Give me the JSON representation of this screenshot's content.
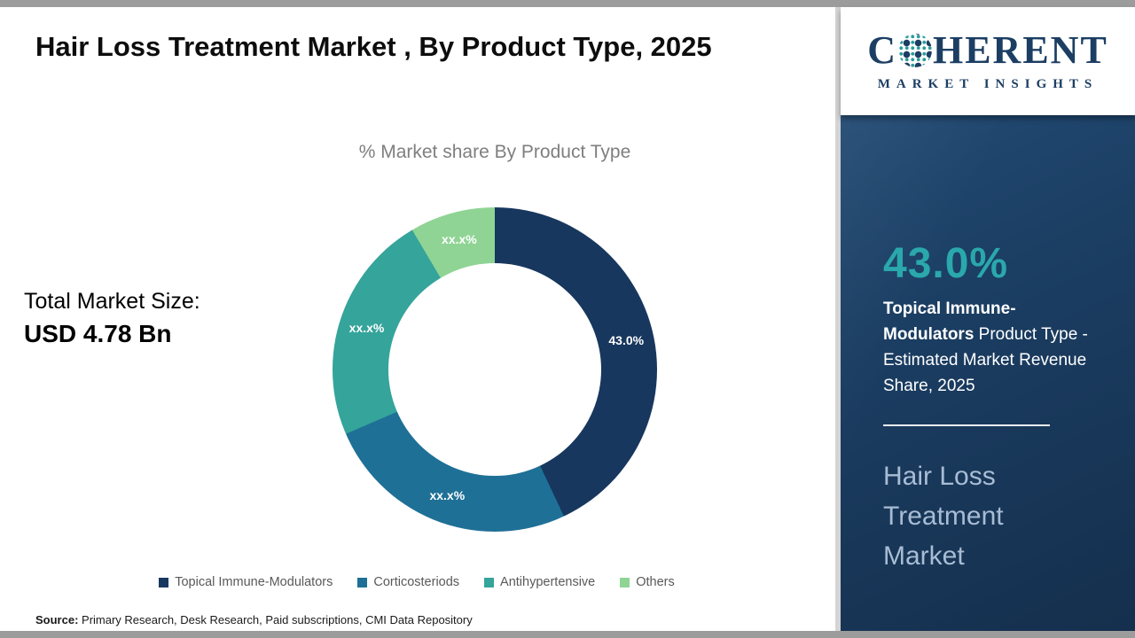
{
  "header": {
    "title": "Hair Loss Treatment Market , By Product Type, 2025"
  },
  "main": {
    "total_label": "Total Market Size:",
    "total_value": "USD 4.78 Bn"
  },
  "chart_data": {
    "type": "pie",
    "subtype": "donut",
    "title": "% Market share By Product Type",
    "categories": [
      "Topical Immune-Modulators",
      "Corticosteriods",
      "Antihypertensive",
      "Others"
    ],
    "values": [
      43.0,
      25.5,
      23.0,
      8.5
    ],
    "labels": [
      "43.0%",
      "xx.x%",
      "xx.x%",
      "xx.x%"
    ],
    "colors": [
      "#17375e",
      "#1f7096",
      "#35a49b",
      "#8fd494"
    ],
    "legend_position": "bottom",
    "start_angle_deg": 0
  },
  "footer": {
    "source_label": "Source:",
    "source_text": " Primary Research, Desk Research, Paid subscriptions, CMI Data Repository"
  },
  "sidebar": {
    "logo": {
      "part1": "C",
      "part2": "HERENT",
      "subtitle": "MARKET INSIGHTS"
    },
    "stat_value": "43.0%",
    "stat_bold": "Topical Immune-Modulators",
    "stat_rest": " Product Type - Estimated Market Revenue Share, 2025",
    "market_name": "Hair Loss Treatment Market",
    "accent_color": "#2aa8ac",
    "panel_color": "#1b3e63"
  }
}
